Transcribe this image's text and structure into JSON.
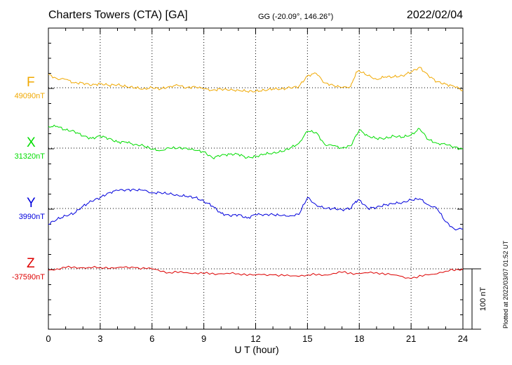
{
  "header": {
    "station": "Charters Towers (CTA)  [GA]",
    "coords": "GG (-20.09°, 146.26°)",
    "date": "2022/02/04"
  },
  "footer": {
    "plotted": "Plotted at 2022/03/07 01:52 UT"
  },
  "chart_data": {
    "type": "line",
    "title": "Charters Towers (CTA)  [GA]",
    "xlabel": "U T (hour)",
    "xlim": [
      0,
      24
    ],
    "xticks": [
      0,
      3,
      6,
      9,
      12,
      15,
      18,
      21,
      24
    ],
    "xtick_labels": [
      "0",
      "3",
      "6",
      "9",
      "12",
      "15",
      "18",
      "21",
      "24"
    ],
    "grid": true,
    "scale_bar_label": "100 nT",
    "scale_bar_nT": 100,
    "series": [
      {
        "name": "F",
        "baseline_label": "49090nT",
        "baseline_nT": 49090,
        "color": "#f0a800",
        "points": [
          [
            0,
            22
          ],
          [
            0.5,
            15
          ],
          [
            1,
            14
          ],
          [
            1.5,
            8
          ],
          [
            2,
            8
          ],
          [
            2.5,
            4
          ],
          [
            3,
            7
          ],
          [
            3.5,
            4
          ],
          [
            4,
            5
          ],
          [
            4.5,
            2
          ],
          [
            5,
            0
          ],
          [
            5.5,
            -2
          ],
          [
            6,
            0
          ],
          [
            6.5,
            -2
          ],
          [
            7,
            2
          ],
          [
            7.5,
            4
          ],
          [
            8,
            0
          ],
          [
            8.5,
            2
          ],
          [
            9,
            -2
          ],
          [
            9.5,
            -4
          ],
          [
            10,
            -2
          ],
          [
            10.5,
            -4
          ],
          [
            11,
            -4
          ],
          [
            11.5,
            -6
          ],
          [
            12,
            -6
          ],
          [
            12.5,
            -4
          ],
          [
            13,
            -2
          ],
          [
            13.5,
            -2
          ],
          [
            14,
            0
          ],
          [
            14.5,
            2
          ],
          [
            15,
            20
          ],
          [
            15.5,
            24
          ],
          [
            16,
            8
          ],
          [
            16.5,
            4
          ],
          [
            17,
            0
          ],
          [
            17.5,
            2
          ],
          [
            17.8,
            24
          ],
          [
            18,
            28
          ],
          [
            18.5,
            20
          ],
          [
            19,
            14
          ],
          [
            19.5,
            18
          ],
          [
            20,
            18
          ],
          [
            20.5,
            20
          ],
          [
            21,
            26
          ],
          [
            21.5,
            34
          ],
          [
            22,
            20
          ],
          [
            22.5,
            10
          ],
          [
            23,
            6
          ],
          [
            23.5,
            2
          ],
          [
            24,
            -4
          ]
        ]
      },
      {
        "name": "X",
        "baseline_label": "31320nT",
        "baseline_nT": 31320,
        "color": "#00dd00",
        "points": [
          [
            0,
            36
          ],
          [
            0.5,
            36
          ],
          [
            1,
            30
          ],
          [
            1.5,
            28
          ],
          [
            2,
            20
          ],
          [
            2.5,
            16
          ],
          [
            3,
            20
          ],
          [
            3.5,
            16
          ],
          [
            4,
            10
          ],
          [
            4.5,
            10
          ],
          [
            5,
            6
          ],
          [
            5.5,
            4
          ],
          [
            6,
            -2
          ],
          [
            6.5,
            -4
          ],
          [
            7,
            0
          ],
          [
            7.5,
            0
          ],
          [
            8,
            0
          ],
          [
            8.5,
            -4
          ],
          [
            9,
            -6
          ],
          [
            9.5,
            -16
          ],
          [
            10,
            -12
          ],
          [
            10.5,
            -10
          ],
          [
            11,
            -10
          ],
          [
            11.5,
            -16
          ],
          [
            12,
            -14
          ],
          [
            12.5,
            -10
          ],
          [
            13,
            -8
          ],
          [
            13.5,
            -6
          ],
          [
            14,
            0
          ],
          [
            14.5,
            8
          ],
          [
            15,
            28
          ],
          [
            15.5,
            26
          ],
          [
            16,
            6
          ],
          [
            16.5,
            4
          ],
          [
            17,
            0
          ],
          [
            17.5,
            4
          ],
          [
            17.8,
            20
          ],
          [
            18,
            30
          ],
          [
            18.5,
            20
          ],
          [
            19,
            16
          ],
          [
            19.5,
            16
          ],
          [
            20,
            20
          ],
          [
            20.5,
            18
          ],
          [
            21,
            22
          ],
          [
            21.5,
            32
          ],
          [
            22,
            14
          ],
          [
            22.5,
            8
          ],
          [
            23,
            6
          ],
          [
            23.5,
            2
          ],
          [
            24,
            -2
          ]
        ]
      },
      {
        "name": "Y",
        "baseline_label": "3990nT",
        "baseline_nT": 3990,
        "color": "#0000dd",
        "points": [
          [
            0,
            -26
          ],
          [
            0.5,
            -18
          ],
          [
            1,
            -12
          ],
          [
            1.5,
            -8
          ],
          [
            2,
            4
          ],
          [
            2.5,
            12
          ],
          [
            3,
            18
          ],
          [
            3.5,
            26
          ],
          [
            4,
            30
          ],
          [
            4.5,
            31
          ],
          [
            5,
            31
          ],
          [
            5.5,
            30
          ],
          [
            6,
            26
          ],
          [
            6.5,
            26
          ],
          [
            7,
            24
          ],
          [
            7.5,
            22
          ],
          [
            8,
            20
          ],
          [
            8.5,
            18
          ],
          [
            9,
            12
          ],
          [
            9.5,
            4
          ],
          [
            10,
            -8
          ],
          [
            10.5,
            -12
          ],
          [
            11,
            -10
          ],
          [
            11.5,
            -16
          ],
          [
            12,
            -10
          ],
          [
            12.5,
            -10
          ],
          [
            13,
            -10
          ],
          [
            13.5,
            -12
          ],
          [
            14,
            -12
          ],
          [
            14.5,
            -10
          ],
          [
            15,
            18
          ],
          [
            15.5,
            6
          ],
          [
            16,
            0
          ],
          [
            16.5,
            0
          ],
          [
            17,
            -2
          ],
          [
            17.5,
            0
          ],
          [
            17.8,
            12
          ],
          [
            18,
            14
          ],
          [
            18.5,
            0
          ],
          [
            19,
            2
          ],
          [
            19.5,
            6
          ],
          [
            20,
            8
          ],
          [
            20.5,
            10
          ],
          [
            21,
            14
          ],
          [
            21.5,
            16
          ],
          [
            22,
            6
          ],
          [
            22.5,
            0
          ],
          [
            23,
            -22
          ],
          [
            23.5,
            -34
          ],
          [
            24,
            -34
          ]
        ]
      },
      {
        "name": "Z",
        "baseline_label": "-37590nT",
        "baseline_nT": -37590,
        "color": "#dd0000",
        "points": [
          [
            0,
            -2
          ],
          [
            1,
            2
          ],
          [
            2,
            2
          ],
          [
            3,
            2
          ],
          [
            4,
            2
          ],
          [
            5,
            2
          ],
          [
            6,
            0
          ],
          [
            7,
            -6
          ],
          [
            8,
            -6
          ],
          [
            9,
            -8
          ],
          [
            10,
            -8
          ],
          [
            11,
            -8
          ],
          [
            12,
            -10
          ],
          [
            13,
            -10
          ],
          [
            14,
            -12
          ],
          [
            15,
            -10
          ],
          [
            16,
            -10
          ],
          [
            17,
            -6
          ],
          [
            18,
            -8
          ],
          [
            19,
            -6
          ],
          [
            20,
            -10
          ],
          [
            21,
            -16
          ],
          [
            22,
            -10
          ],
          [
            23,
            -4
          ],
          [
            24,
            0
          ]
        ]
      }
    ]
  }
}
